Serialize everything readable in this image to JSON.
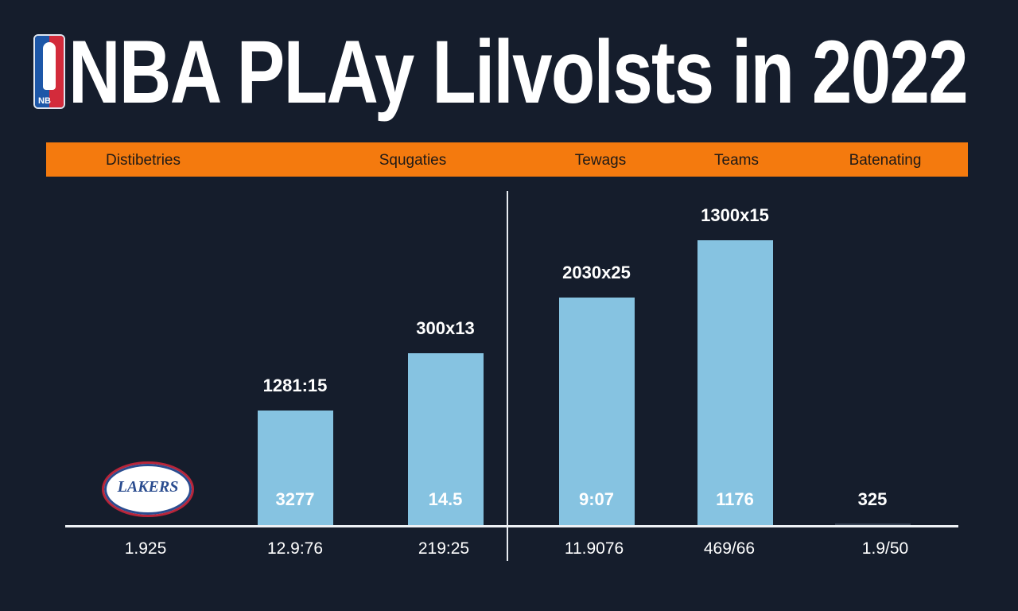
{
  "title": "NBA PLAy Lilvolsts in 2022",
  "logo_text": "NB",
  "team_logo_text": "LAKERS",
  "colors": {
    "background": "#151d2c",
    "header": "#f47a0e",
    "bar": "#86c3e1"
  },
  "chart_data": {
    "type": "bar",
    "title": "NBA PLAy Lilvolsts in 2022",
    "header_labels": [
      "Distibetries",
      "Squgaties",
      "Tewags",
      "Teams",
      "Batenating"
    ],
    "x_labels": [
      "1.925",
      "12.9:76",
      "219:25",
      "11.9076",
      "469/66",
      "1.9/50"
    ],
    "categories": [
      "12.9:76",
      "219:25",
      "11.9076",
      "469/66",
      "1.9/50"
    ],
    "values": [
      145,
      217,
      287,
      359,
      3
    ],
    "top_labels": [
      "1281:15",
      "300x13",
      "2030x25",
      "1300x15",
      ""
    ],
    "inner_labels": [
      "3277",
      "14.5",
      "9:07",
      "1176",
      "325"
    ],
    "ylim": [
      0,
      420
    ],
    "grid": false
  }
}
